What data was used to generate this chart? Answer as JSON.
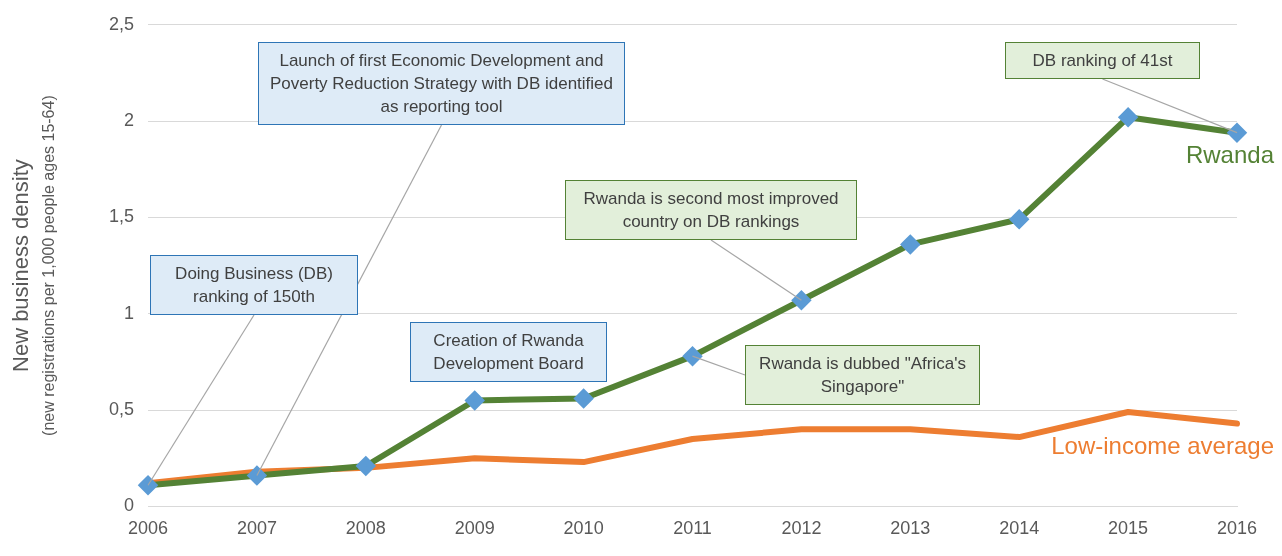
{
  "chart_data": {
    "type": "line",
    "ylabel": "New business density\n(new registrations per 1,000 people ages 15-64)",
    "categories": [
      "2006",
      "2007",
      "2008",
      "2009",
      "2010",
      "2011",
      "2012",
      "2013",
      "2014",
      "2015",
      "2016"
    ],
    "series": [
      {
        "name": "Rwanda",
        "color": "#548235",
        "marker": "diamond",
        "values": [
          0.11,
          0.16,
          0.21,
          0.55,
          0.56,
          0.78,
          1.07,
          1.36,
          1.49,
          2.02,
          1.94
        ]
      },
      {
        "name": "Low-income average",
        "color": "#ed7d31",
        "marker": "none",
        "values": [
          0.12,
          0.18,
          0.2,
          0.25,
          0.23,
          0.35,
          0.4,
          0.4,
          0.36,
          0.49,
          0.43
        ]
      }
    ],
    "ylim": [
      0,
      2.5
    ],
    "yticks": [
      0,
      {
        "value": 0.5,
        "label": "0,5"
      },
      1,
      {
        "value": 1.5,
        "label": "1,5"
      },
      2,
      {
        "value": 2.5,
        "label": "2,5"
      }
    ],
    "grid": "y",
    "legend": false,
    "line_style": "solid",
    "annotations": [
      {
        "text": "Doing Business (DB) ranking of 150th",
        "x": "2006",
        "y": 0.11
      },
      {
        "text": "Launch of first Economic Development and Poverty Reduction Strategy with DB identified as reporting tool",
        "x": "2007",
        "y": 0.16
      },
      "Creation of Rwanda Development Board",
      {
        "text": "Rwanda is dubbed \"Africa's Singapore\"",
        "x": "2011",
        "y": 0.78
      },
      {
        "text": "Rwanda is second most improved country on DB rankings",
        "x": "2012",
        "y": 1.07
      },
      {
        "text": "DB ranking of 41st",
        "x": "2016",
        "y": 1.94
      }
    ]
  }
}
